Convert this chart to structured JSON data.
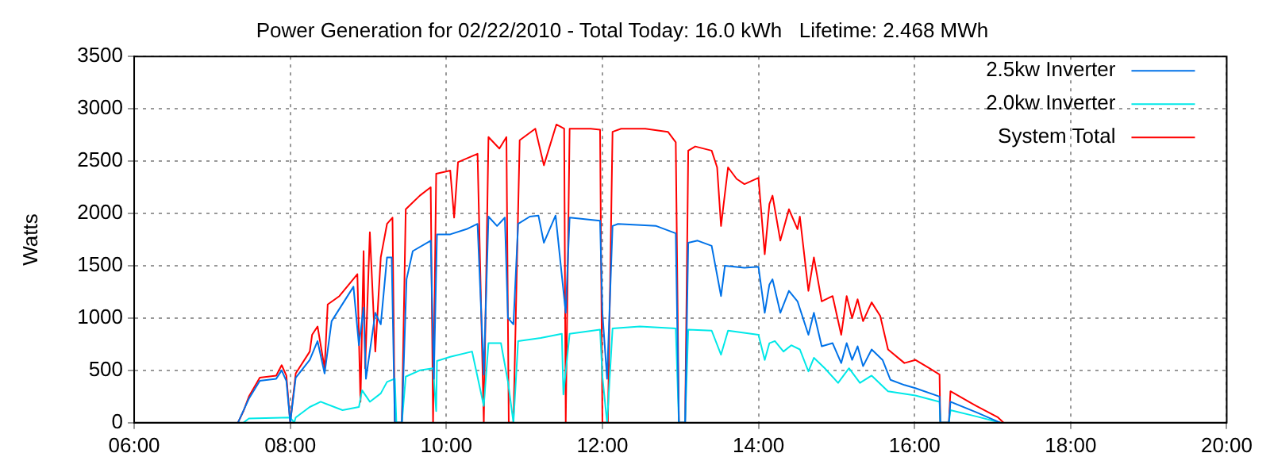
{
  "chart_data": {
    "type": "line",
    "title": "Power Generation for 02/22/2010 - Total Today: 16.0 kWh   Lifetime: 2.468 MWh",
    "ylabel": "Watts",
    "xlim": [
      6,
      20
    ],
    "xticks": [
      {
        "value": 6,
        "label": "06:00"
      },
      {
        "value": 8,
        "label": "08:00"
      },
      {
        "value": 10,
        "label": "10:00"
      },
      {
        "value": 12,
        "label": "12:00"
      },
      {
        "value": 14,
        "label": "14:00"
      },
      {
        "value": 16,
        "label": "16:00"
      },
      {
        "value": 18,
        "label": "18:00"
      },
      {
        "value": 20,
        "label": "20:00"
      }
    ],
    "ylim": [
      0,
      3500
    ],
    "yticks": [
      0,
      500,
      1000,
      1500,
      2000,
      2500,
      3000,
      3500
    ],
    "grid": true,
    "legend": "top right",
    "marker": "none",
    "line_style": "solid",
    "series": [
      {
        "name": "2.5kw Inverter",
        "color": "#0072e8",
        "x": [
          7.33,
          7.47,
          7.61,
          7.82,
          7.89,
          7.95,
          8.0,
          8.07,
          8.25,
          8.35,
          8.44,
          8.53,
          8.81,
          8.88,
          8.94,
          8.97,
          9.09,
          9.16,
          9.24,
          9.3,
          9.34,
          9.43,
          9.49,
          9.57,
          9.8,
          9.84,
          9.88,
          10.05,
          10.26,
          10.4,
          10.48,
          10.54,
          10.65,
          10.75,
          10.79,
          10.86,
          10.92,
          11.07,
          11.18,
          11.25,
          11.4,
          11.53,
          11.58,
          11.97,
          12.0,
          12.06,
          12.13,
          12.2,
          12.69,
          12.94,
          12.98,
          13.06,
          13.1,
          13.22,
          13.4,
          13.52,
          13.57,
          13.82,
          14.0,
          14.08,
          14.14,
          14.18,
          14.28,
          14.39,
          14.5,
          14.64,
          14.71,
          14.81,
          14.95,
          15.06,
          15.13,
          15.2,
          15.27,
          15.34,
          15.45,
          15.59,
          15.69,
          15.87,
          16.01,
          16.32,
          16.33,
          16.44,
          16.46,
          16.79,
          17.1
        ],
        "values": [
          0,
          230,
          400,
          420,
          500,
          400,
          0,
          430,
          600,
          780,
          470,
          970,
          1300,
          740,
          1100,
          420,
          1050,
          940,
          1580,
          1580,
          0,
          0,
          1370,
          1640,
          1740,
          420,
          1800,
          1800,
          1850,
          1900,
          460,
          1970,
          1880,
          1960,
          1000,
          940,
          1900,
          1970,
          1980,
          1720,
          1980,
          1050,
          1960,
          1930,
          1050,
          420,
          1880,
          1900,
          1880,
          1810,
          0,
          0,
          1720,
          1740,
          1690,
          1210,
          1500,
          1480,
          1490,
          1050,
          1320,
          1370,
          1050,
          1260,
          1160,
          840,
          1050,
          730,
          760,
          570,
          760,
          600,
          730,
          540,
          700,
          600,
          410,
          360,
          330,
          250,
          0,
          0,
          200,
          100,
          0
        ]
      },
      {
        "name": "2.0kw Inverter",
        "color": "#00e8e8",
        "x": [
          7.4,
          7.47,
          8.0,
          8.05,
          8.07,
          8.25,
          8.39,
          8.67,
          8.88,
          8.92,
          9.02,
          9.16,
          9.24,
          9.34,
          9.36,
          9.43,
          9.48,
          9.66,
          9.83,
          9.87,
          9.88,
          10.05,
          10.33,
          10.48,
          10.54,
          10.7,
          10.79,
          10.86,
          10.92,
          11.21,
          11.48,
          11.5,
          11.58,
          11.97,
          12.0,
          12.06,
          12.13,
          12.48,
          12.94,
          12.98,
          13.06,
          13.1,
          13.4,
          13.52,
          13.61,
          14.0,
          14.08,
          14.14,
          14.21,
          14.32,
          14.42,
          14.53,
          14.64,
          14.71,
          14.85,
          15.02,
          15.16,
          15.3,
          15.45,
          15.66,
          16.01,
          16.32,
          16.33,
          16.44,
          16.46,
          16.79,
          17.1
        ],
        "values": [
          0,
          40,
          50,
          0,
          50,
          150,
          200,
          120,
          150,
          310,
          200,
          280,
          390,
          420,
          0,
          0,
          440,
          500,
          520,
          110,
          590,
          630,
          680,
          160,
          760,
          760,
          390,
          0,
          780,
          810,
          850,
          270,
          850,
          890,
          440,
          0,
          900,
          920,
          900,
          0,
          0,
          890,
          880,
          650,
          880,
          840,
          600,
          760,
          780,
          680,
          740,
          700,
          490,
          620,
          520,
          380,
          520,
          380,
          450,
          300,
          260,
          200,
          0,
          0,
          120,
          60,
          0
        ]
      },
      {
        "name": "System Total",
        "color": "#ff0000",
        "x": [
          7.33,
          7.4,
          7.47,
          7.61,
          7.82,
          7.89,
          7.95,
          8.0,
          8.07,
          8.25,
          8.28,
          8.35,
          8.44,
          8.48,
          8.63,
          8.86,
          8.9,
          8.94,
          8.96,
          9.02,
          9.09,
          9.16,
          9.24,
          9.31,
          9.34,
          9.43,
          9.48,
          9.66,
          9.8,
          9.83,
          9.87,
          10.05,
          10.1,
          10.15,
          10.4,
          10.48,
          10.54,
          10.68,
          10.77,
          10.8,
          10.86,
          10.94,
          11.14,
          11.25,
          11.41,
          11.51,
          11.53,
          11.58,
          11.85,
          11.97,
          12.0,
          12.07,
          12.13,
          12.24,
          12.55,
          12.84,
          12.94,
          12.98,
          13.06,
          13.1,
          13.19,
          13.4,
          13.47,
          13.52,
          13.61,
          13.72,
          13.82,
          14.0,
          14.08,
          14.14,
          14.18,
          14.28,
          14.39,
          14.5,
          14.53,
          14.64,
          14.71,
          14.81,
          14.95,
          15.06,
          15.13,
          15.2,
          15.27,
          15.34,
          15.45,
          15.56,
          15.66,
          15.87,
          16.01,
          16.19,
          16.32,
          16.33,
          16.44,
          16.46,
          16.79,
          17.07,
          17.14
        ],
        "values": [
          0,
          110,
          250,
          430,
          450,
          550,
          450,
          0,
          470,
          680,
          840,
          920,
          520,
          1130,
          1210,
          1420,
          200,
          1640,
          520,
          1820,
          680,
          1580,
          1900,
          1960,
          0,
          0,
          2040,
          2170,
          2250,
          0,
          2380,
          2410,
          1960,
          2490,
          2570,
          0,
          2730,
          2620,
          2730,
          0,
          0,
          2700,
          2810,
          2460,
          2850,
          2810,
          0,
          2810,
          2810,
          2800,
          0,
          0,
          2780,
          2810,
          2810,
          2780,
          2680,
          0,
          0,
          2600,
          2640,
          2600,
          2440,
          1880,
          2440,
          2330,
          2280,
          2340,
          1610,
          2090,
          2170,
          1740,
          2040,
          1850,
          1970,
          1260,
          1580,
          1160,
          1210,
          840,
          1210,
          1000,
          1180,
          970,
          1150,
          1020,
          700,
          570,
          600,
          520,
          460,
          0,
          0,
          300,
          160,
          50,
          0
        ]
      }
    ]
  }
}
